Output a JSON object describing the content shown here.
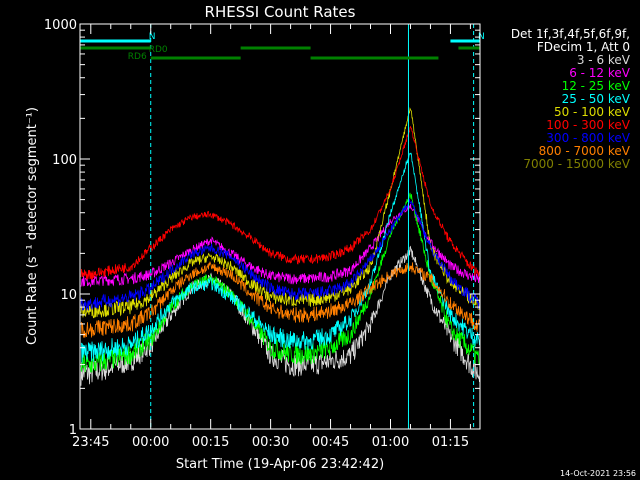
{
  "chart_data": {
    "type": "line",
    "title": "RHESSI Count Rates",
    "xlabel": "Start Time (19-Apr-06 23:42:42)",
    "ylabel": "Count Rate (s⁻¹ detector segment⁻¹)",
    "yscale": "log",
    "ylim": [
      1,
      1000
    ],
    "xlim_minutes_from_start": [
      -2.7,
      97.4
    ],
    "y_tick_labels": [
      "1",
      "10",
      "100",
      "1000"
    ],
    "x_tick_labels": [
      "23:45",
      "00:00",
      "00:15",
      "00:30",
      "00:45",
      "01:00",
      "01:15"
    ],
    "x_tick_minutes": [
      0,
      15,
      30,
      45,
      60,
      75,
      90
    ],
    "legend_header": [
      "Det 1f,3f,4f,5f,6f,9f,",
      "FDecim 1, Att 0"
    ],
    "timestamp": "14-Oct-2021 23:56",
    "grid": false,
    "legend_position": "right",
    "series": [
      {
        "name": "3 - 6 keV",
        "color": "#d9d9d9",
        "x": [
          -2.7,
          0,
          10,
          15,
          20,
          25,
          30,
          35,
          40,
          45,
          50,
          55,
          60,
          65,
          70,
          75,
          80,
          85,
          90,
          95,
          97.4
        ],
        "y": [
          2.6,
          2.6,
          3.2,
          4.2,
          7,
          11,
          13,
          10,
          6,
          3.5,
          3,
          3,
          3.2,
          3.5,
          6,
          14,
          21,
          9,
          4.8,
          3,
          2.5
        ]
      },
      {
        "name": "6 - 12 keV",
        "color": "#ff00ff",
        "x": [
          -2.7,
          0,
          10,
          15,
          20,
          25,
          30,
          35,
          40,
          45,
          50,
          55,
          60,
          65,
          70,
          75,
          80,
          85,
          90,
          95,
          97.4
        ],
        "y": [
          12.5,
          12.5,
          13,
          14,
          17,
          21,
          25,
          20,
          16,
          13.5,
          13,
          13,
          13.5,
          15,
          22,
          35,
          45,
          24,
          16,
          13.5,
          12.5
        ]
      },
      {
        "name": "12 - 25 keV",
        "color": "#00ff00",
        "x": [
          -2.7,
          0,
          10,
          15,
          20,
          25,
          30,
          35,
          40,
          45,
          50,
          55,
          60,
          65,
          70,
          75,
          80,
          85,
          90,
          95,
          97.4
        ],
        "y": [
          3,
          3,
          3.6,
          4.6,
          8,
          11.5,
          13,
          10,
          6.5,
          4,
          3.6,
          3.6,
          4,
          5,
          10,
          28,
          55,
          13,
          5.5,
          3.8,
          3.2
        ]
      },
      {
        "name": "25 - 50 keV",
        "color": "#00ffff",
        "x": [
          -2.7,
          0,
          10,
          15,
          20,
          25,
          30,
          35,
          40,
          45,
          50,
          55,
          60,
          65,
          70,
          75,
          80,
          85,
          90,
          95,
          97.4
        ],
        "y": [
          3.7,
          3.7,
          4.2,
          5.5,
          8.5,
          11,
          12,
          9.5,
          7,
          5,
          4.5,
          4.5,
          5,
          6.5,
          12,
          40,
          115,
          14,
          7,
          5,
          4.5
        ]
      },
      {
        "name": "50 - 100 keV",
        "color": "#dddd00",
        "x": [
          -2.7,
          0,
          10,
          15,
          20,
          25,
          30,
          35,
          40,
          45,
          50,
          55,
          60,
          65,
          70,
          75,
          80,
          85,
          90,
          95,
          97.4
        ],
        "y": [
          7.5,
          7.5,
          8,
          9.5,
          13,
          17,
          19,
          16,
          12,
          9.5,
          9,
          9,
          9.5,
          11,
          16,
          60,
          245,
          22,
          12,
          9,
          8.5
        ]
      },
      {
        "name": "100 - 300 keV",
        "color": "#ff0000",
        "x": [
          -2.7,
          0,
          10,
          15,
          20,
          25,
          30,
          35,
          40,
          45,
          50,
          55,
          60,
          65,
          70,
          75,
          80,
          85,
          90,
          95,
          97.4
        ],
        "y": [
          14,
          14,
          16,
          22,
          30,
          37,
          39,
          33,
          26,
          20,
          18,
          18,
          19,
          22,
          30,
          60,
          175,
          45,
          24,
          16,
          14
        ]
      },
      {
        "name": "300 - 800 keV",
        "color": "#0000ff",
        "x": [
          -2.7,
          0,
          10,
          15,
          20,
          25,
          30,
          35,
          40,
          45,
          50,
          55,
          60,
          65,
          70,
          75,
          80,
          85,
          90,
          95,
          97.4
        ],
        "y": [
          8.5,
          8.5,
          9.5,
          11,
          15,
          19.5,
          22,
          19,
          14,
          11,
          10,
          10,
          10.5,
          12,
          18,
          30,
          50,
          22,
          13,
          9.5,
          8.5
        ]
      },
      {
        "name": "800 - 7000 keV",
        "color": "#ff7f00",
        "x": [
          -2.7,
          0,
          10,
          15,
          20,
          25,
          30,
          35,
          40,
          45,
          50,
          55,
          60,
          65,
          70,
          75,
          80,
          85,
          90,
          95,
          97.4
        ],
        "y": [
          5.5,
          5.5,
          6,
          7.3,
          10.5,
          14,
          16,
          14,
          10,
          7.8,
          7,
          7,
          7.5,
          8.5,
          11,
          14,
          16,
          13,
          8.5,
          6.5,
          5.8
        ]
      },
      {
        "name": "7000 - 15000 keV",
        "color": "#808000",
        "x": [],
        "y": []
      }
    ],
    "annotations": [
      {
        "text": "N",
        "color": "#00ffff",
        "x": [
          -2.7,
          15
        ],
        "level": "top"
      },
      {
        "text": "N",
        "color": "#00ffff",
        "x": [
          90,
          97.4
        ],
        "level": "top"
      },
      {
        "text": "RD0",
        "color": "#008000",
        "x": [
          -2.7,
          15
        ],
        "level": "middle"
      },
      {
        "text": "",
        "color": "#008000",
        "x": [
          37.5,
          55
        ],
        "level": "middle"
      },
      {
        "text": "",
        "color": "#008000",
        "x": [
          92,
          97.4
        ],
        "level": "middle"
      },
      {
        "text": "RD6",
        "color": "#008000",
        "x": [
          15,
          37.5
        ],
        "level": "bottom"
      },
      {
        "text": "",
        "color": "#008000",
        "x": [
          55,
          87
        ],
        "level": "bottom"
      }
    ],
    "vertical_markers": [
      {
        "x": -2.7,
        "color": "#00ffff",
        "style": "solid"
      },
      {
        "x": 15,
        "color": "#00ffff",
        "style": "dashed"
      },
      {
        "x": 79.5,
        "color": "#00ffff",
        "style": "solid"
      },
      {
        "x": 95.8,
        "color": "#00ffff",
        "style": "dashed"
      }
    ]
  }
}
